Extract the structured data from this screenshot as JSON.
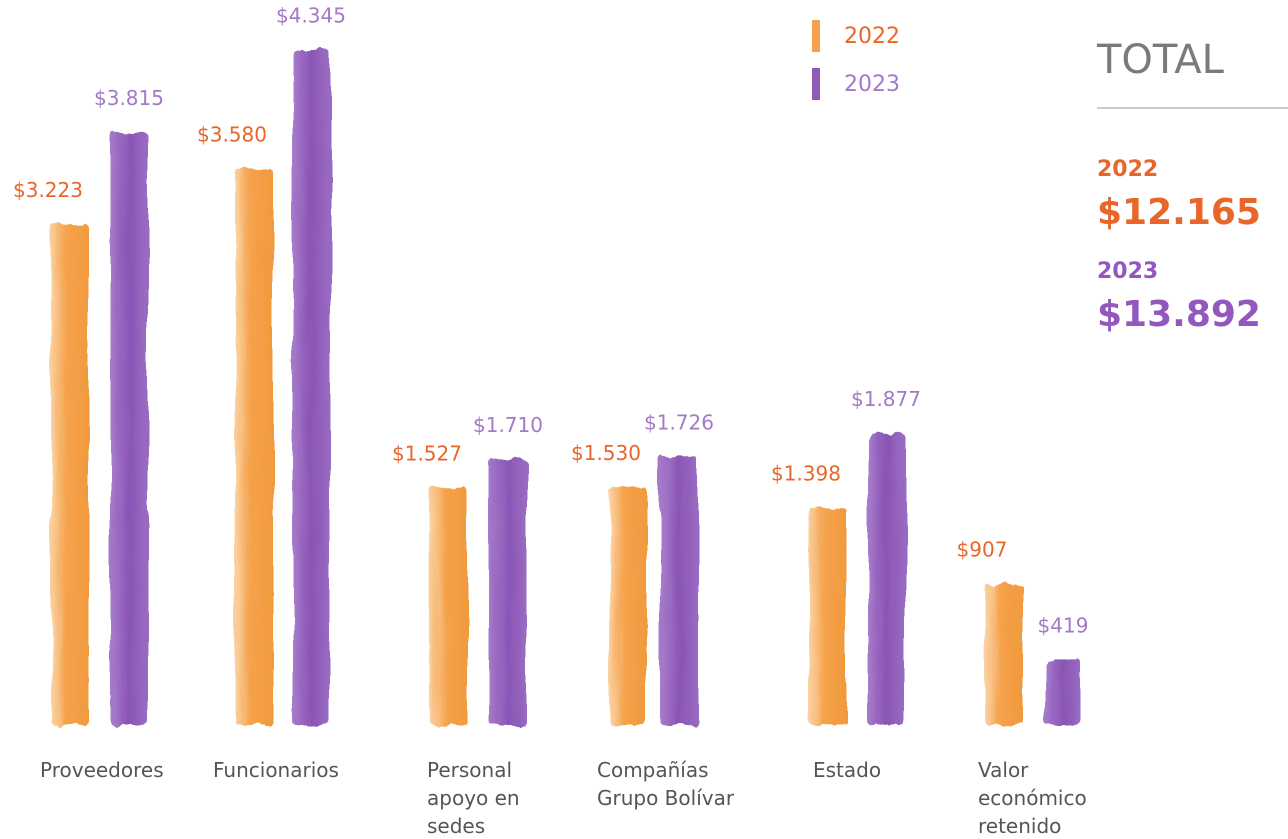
{
  "chart_data": {
    "type": "bar",
    "categories": [
      "Proveedores",
      "Funcionarios",
      "Personal apoyo en sedes",
      "Compañías Grupo Bolívar",
      "Estado",
      "Valor económico retenido"
    ],
    "series": [
      {
        "name": "2022",
        "color": "#f5a24c",
        "label_color": "#e8662a",
        "values": [
          3223,
          3580,
          1527,
          1530,
          1398,
          907
        ],
        "value_labels": [
          "$3.223",
          "$3.580",
          "$1.527",
          "$1.530",
          "$1.398",
          "$907"
        ]
      },
      {
        "name": "2023",
        "color": "#8e5bb8",
        "label_color": "#a27ac6",
        "values": [
          3815,
          4345,
          1710,
          1726,
          1877,
          419
        ],
        "value_labels": [
          "$3.815",
          "$4.345",
          "$1.710",
          "$1.726",
          "$1.877",
          "$419"
        ]
      }
    ],
    "totals_title": "TOTAL",
    "totals": [
      {
        "name": "2022",
        "value": 12165,
        "value_label": "$12.165",
        "color": "#e8662a"
      },
      {
        "name": "2023",
        "value": 13892,
        "value_label": "$13.892",
        "color": "#9358be"
      }
    ]
  }
}
